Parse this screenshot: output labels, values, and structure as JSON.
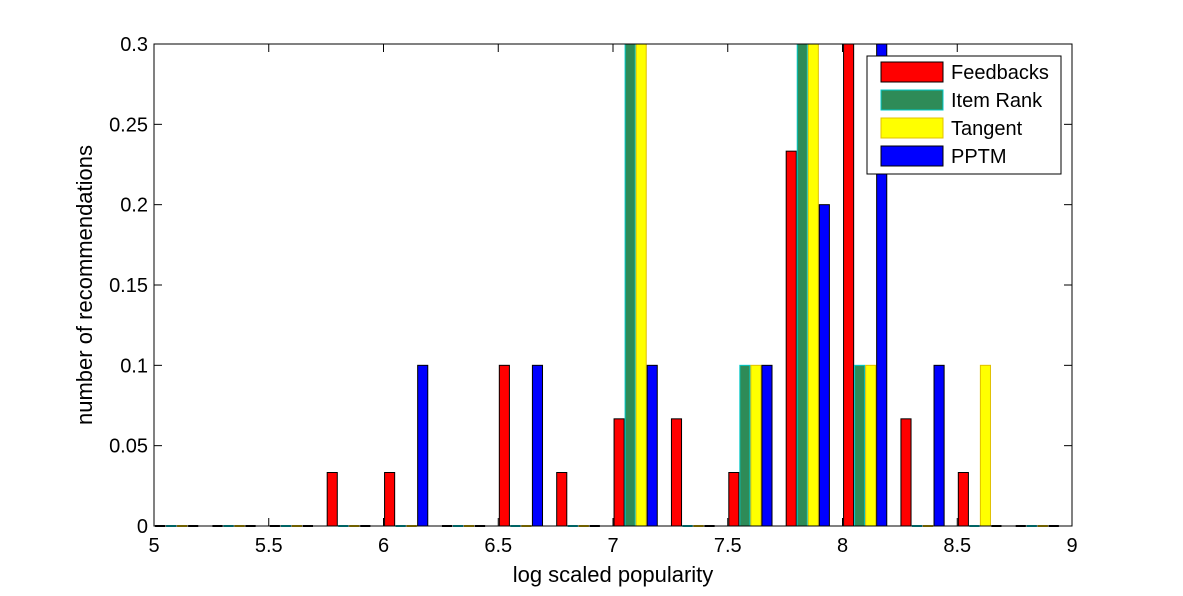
{
  "chart_data": {
    "type": "bar",
    "title": "",
    "xlabel": "log scaled popularity",
    "ylabel": "number of recommendations",
    "xlim": [
      5,
      9
    ],
    "ylim": [
      0,
      0.3
    ],
    "grid": false,
    "legend_placement": "top-right",
    "xticks": [
      "5",
      "5.5",
      "6",
      "6.5",
      "7",
      "7.5",
      "8",
      "8.5",
      "9"
    ],
    "yticks": [
      "0",
      "0.05",
      "0.1",
      "0.15",
      "0.2",
      "0.25",
      "0.3"
    ],
    "x": [
      5.1,
      5.35,
      5.6,
      5.85,
      6.1,
      6.35,
      6.6,
      6.85,
      7.1,
      7.35,
      7.6,
      7.85,
      8.1,
      8.35,
      8.6,
      8.85
    ],
    "series": [
      {
        "name": "Feedbacks",
        "color": "#ff0000",
        "values": [
          0,
          0,
          0,
          0.0333,
          0.0333,
          0,
          0.1,
          0.0333,
          0.0667,
          0.0667,
          0.0333,
          0.2333,
          0.3,
          0.0667,
          0.0333,
          0
        ]
      },
      {
        "name": "Item Rank",
        "color": "#2e8b57",
        "values": [
          0,
          0,
          0,
          0,
          0,
          0,
          0,
          0,
          0.3,
          0,
          0.1,
          0.3,
          0.1,
          0,
          0,
          0
        ]
      },
      {
        "name": "Tangent",
        "color": "#ffff00",
        "values": [
          0,
          0,
          0,
          0,
          0,
          0,
          0,
          0,
          0.3,
          0,
          0.1,
          0.3,
          0.1,
          0,
          0.1,
          0
        ]
      },
      {
        "name": "PPTM",
        "color": "#0000ff",
        "values": [
          0,
          0,
          0,
          0,
          0.1,
          0,
          0.1,
          0,
          0.1,
          0,
          0.1,
          0.2,
          0.3,
          0.1,
          0,
          0
        ]
      }
    ]
  }
}
